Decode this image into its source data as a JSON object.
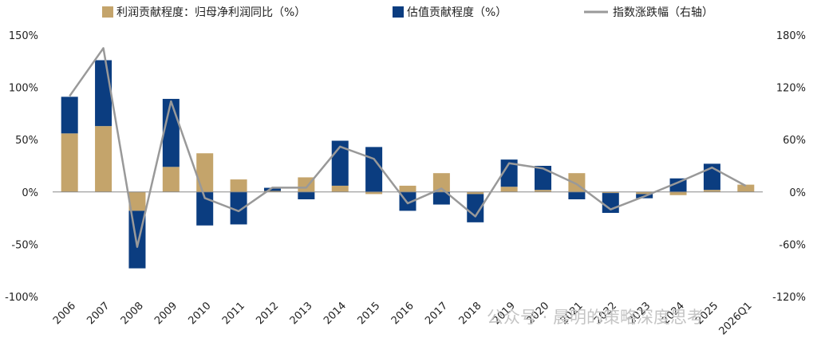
{
  "chart_data": {
    "type": "bar",
    "categories": [
      "2006",
      "2007",
      "2008",
      "2009",
      "2010",
      "2011",
      "2012",
      "2013",
      "2014",
      "2015",
      "2016",
      "2017",
      "2018",
      "2019",
      "2020",
      "2021",
      "2022",
      "2023",
      "2024",
      "2025",
      "2026Q1"
    ],
    "series": [
      {
        "name": "利润贡献程度：归母净利润同比（%）",
        "type": "bar",
        "axis": "left",
        "color": "#C4A46B",
        "values": [
          56,
          63,
          -18,
          24,
          37,
          12,
          1,
          14,
          6,
          -2,
          6,
          18,
          -2,
          5,
          2,
          18,
          -1,
          -2,
          -3,
          2,
          7
        ]
      },
      {
        "name": "估值贡献程度（%）",
        "type": "bar",
        "axis": "left",
        "color": "#0B3D80",
        "values": [
          35,
          63,
          -55,
          65,
          -32,
          -31,
          3,
          -7,
          43,
          43,
          -18,
          -12,
          -27,
          26,
          23,
          -7,
          -19,
          -4,
          13,
          25,
          0
        ]
      },
      {
        "name": "指数涨跌幅（右轴）",
        "type": "line",
        "axis": "right",
        "color": "#999999",
        "values": [
          110,
          165,
          -63,
          104,
          -7,
          -22,
          5,
          5,
          52,
          38,
          -13,
          4,
          -28,
          33,
          27,
          9,
          -20,
          -5,
          11,
          28,
          7
        ]
      }
    ],
    "y_left": {
      "min": -100,
      "max": 150,
      "ticks": [
        -100,
        -50,
        0,
        50,
        100,
        150
      ],
      "tick_labels": [
        "-100%",
        "-50%",
        "0%",
        "50%",
        "100%",
        "150%"
      ]
    },
    "y_right": {
      "min": -120,
      "max": 180,
      "ticks": [
        -120,
        -60,
        0,
        60,
        120,
        180
      ],
      "tick_labels": [
        "-120%",
        "-60%",
        "0%",
        "60%",
        "120%",
        "180%"
      ]
    },
    "grid": false,
    "legend_position": "top",
    "title": "",
    "xlabel": "",
    "ylabel": ""
  },
  "watermark": "公众号 · 晨明的策略深度思考"
}
